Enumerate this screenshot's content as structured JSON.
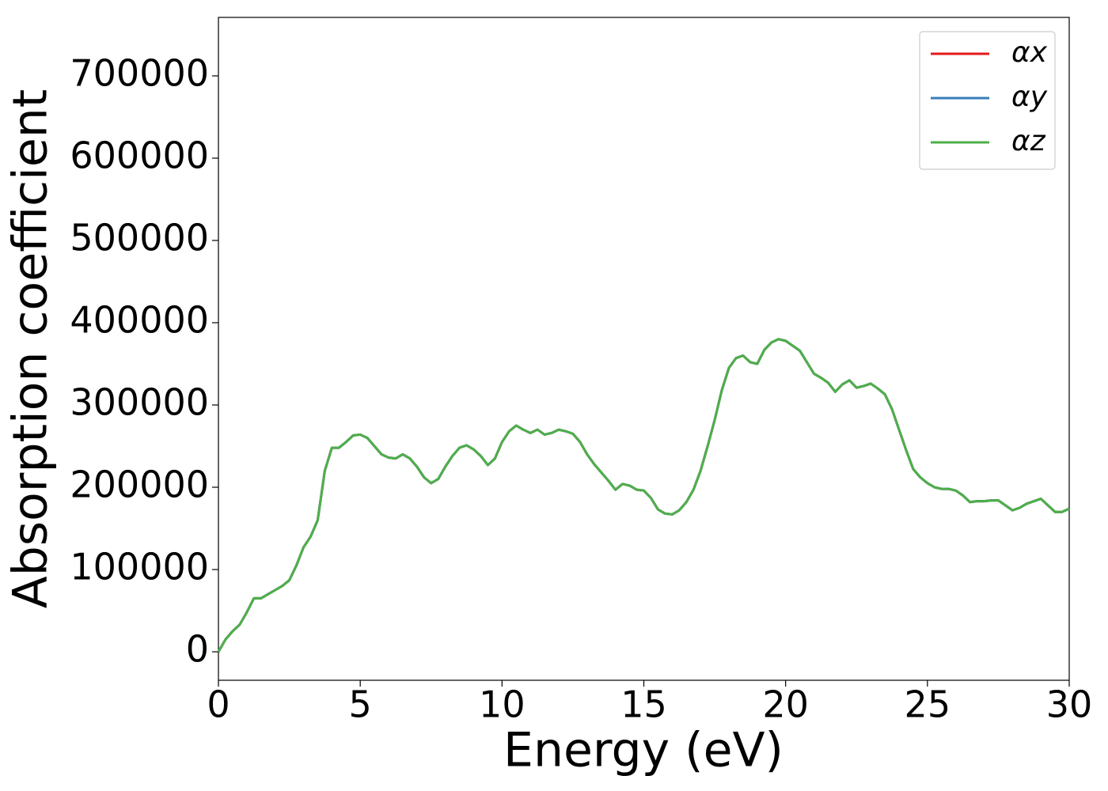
{
  "chart_data": {
    "type": "line",
    "xlabel": "Energy (eV)",
    "ylabel": "Absorption coefficient",
    "x": [
      0,
      0.25,
      0.5,
      0.75,
      1,
      1.25,
      1.5,
      1.75,
      2,
      2.25,
      2.5,
      2.75,
      3,
      3.25,
      3.5,
      3.75,
      4,
      4.25,
      4.5,
      4.75,
      5,
      5.25,
      5.5,
      5.75,
      6,
      6.25,
      6.5,
      6.75,
      7,
      7.25,
      7.5,
      7.75,
      8,
      8.25,
      8.5,
      8.75,
      9,
      9.25,
      9.5,
      9.75,
      10,
      10.25,
      10.5,
      10.75,
      11,
      11.25,
      11.5,
      11.75,
      12,
      12.25,
      12.5,
      12.75,
      13,
      13.25,
      13.5,
      13.75,
      14,
      14.25,
      14.5,
      14.75,
      15,
      15.25,
      15.5,
      15.75,
      16,
      16.25,
      16.5,
      16.75,
      17,
      17.25,
      17.5,
      17.75,
      18,
      18.25,
      18.5,
      18.75,
      19,
      19.25,
      19.5,
      19.75,
      20,
      20.25,
      20.5,
      20.75,
      21,
      21.25,
      21.5,
      21.75,
      22,
      22.25,
      22.5,
      22.75,
      23,
      23.25,
      23.5,
      23.75,
      24,
      24.25,
      24.5,
      24.75,
      25,
      25.25,
      25.5,
      25.75,
      26,
      26.25,
      26.5,
      26.75,
      27,
      27.25,
      27.5,
      27.75,
      28,
      28.25,
      28.5,
      28.75,
      29,
      29.25,
      29.5,
      29.75,
      30
    ],
    "series": [
      {
        "name": "αx",
        "color": "#e41a1c",
        "values": [
          0,
          15000,
          25000,
          33000,
          48000,
          65000,
          65000,
          70000,
          75000,
          80000,
          87000,
          105000,
          127000,
          140000,
          160000,
          220000,
          248000,
          248000,
          255000,
          263000,
          264000,
          260000,
          250000,
          240000,
          236000,
          235000,
          240000,
          235000,
          225000,
          212000,
          205000,
          210000,
          225000,
          238000,
          248000,
          251000,
          246000,
          238000,
          227000,
          235000,
          255000,
          268000,
          275000,
          270000,
          266000,
          270000,
          264000,
          266000,
          270000,
          268000,
          265000,
          255000,
          240000,
          228000,
          218000,
          208000,
          197000,
          204000,
          202000,
          197000,
          196000,
          187000,
          173000,
          168000,
          167000,
          172000,
          182000,
          197000,
          220000,
          250000,
          282000,
          318000,
          345000,
          357000,
          360000,
          352000,
          350000,
          367000,
          376000,
          380000,
          378000,
          372000,
          366000,
          352000,
          338000,
          333000,
          327000,
          316000,
          325000,
          330000,
          321000,
          323000,
          326000,
          320000,
          313000,
          295000,
          270000,
          245000,
          222000,
          212000,
          205000,
          200000,
          198000,
          198000,
          196000,
          190000,
          182000,
          183000,
          183000,
          184000,
          184000,
          178000,
          172000,
          175000,
          180000,
          183000,
          186000,
          178000,
          170000,
          170000,
          174000
        ]
      },
      {
        "name": "αy",
        "color": "#377eb8",
        "values": [
          0,
          15000,
          25000,
          33000,
          48000,
          65000,
          65000,
          70000,
          75000,
          80000,
          87000,
          105000,
          127000,
          140000,
          160000,
          220000,
          248000,
          248000,
          255000,
          263000,
          264000,
          260000,
          250000,
          240000,
          236000,
          235000,
          240000,
          235000,
          225000,
          212000,
          205000,
          210000,
          225000,
          238000,
          248000,
          251000,
          246000,
          238000,
          227000,
          235000,
          255000,
          268000,
          275000,
          270000,
          266000,
          270000,
          264000,
          266000,
          270000,
          268000,
          265000,
          255000,
          240000,
          228000,
          218000,
          208000,
          197000,
          204000,
          202000,
          197000,
          196000,
          187000,
          173000,
          168000,
          167000,
          172000,
          182000,
          197000,
          220000,
          250000,
          282000,
          318000,
          345000,
          357000,
          360000,
          352000,
          350000,
          367000,
          376000,
          380000,
          378000,
          372000,
          366000,
          352000,
          338000,
          333000,
          327000,
          316000,
          325000,
          330000,
          321000,
          323000,
          326000,
          320000,
          313000,
          295000,
          270000,
          245000,
          222000,
          212000,
          205000,
          200000,
          198000,
          198000,
          196000,
          190000,
          182000,
          183000,
          183000,
          184000,
          184000,
          178000,
          172000,
          175000,
          180000,
          183000,
          186000,
          178000,
          170000,
          170000,
          174000
        ]
      },
      {
        "name": "αz",
        "color": "#4daf4a",
        "values": [
          0,
          15000,
          25000,
          33000,
          48000,
          65000,
          65000,
          70000,
          75000,
          80000,
          87000,
          105000,
          127000,
          140000,
          160000,
          220000,
          248000,
          248000,
          255000,
          263000,
          264000,
          260000,
          250000,
          240000,
          236000,
          235000,
          240000,
          235000,
          225000,
          212000,
          205000,
          210000,
          225000,
          238000,
          248000,
          251000,
          246000,
          238000,
          227000,
          235000,
          255000,
          268000,
          275000,
          270000,
          266000,
          270000,
          264000,
          266000,
          270000,
          268000,
          265000,
          255000,
          240000,
          228000,
          218000,
          208000,
          197000,
          204000,
          202000,
          197000,
          196000,
          187000,
          173000,
          168000,
          167000,
          172000,
          182000,
          197000,
          220000,
          250000,
          282000,
          318000,
          345000,
          357000,
          360000,
          352000,
          350000,
          367000,
          376000,
          380000,
          378000,
          372000,
          366000,
          352000,
          338000,
          333000,
          327000,
          316000,
          325000,
          330000,
          321000,
          323000,
          326000,
          320000,
          313000,
          295000,
          270000,
          245000,
          222000,
          212000,
          205000,
          200000,
          198000,
          198000,
          196000,
          190000,
          182000,
          183000,
          183000,
          184000,
          184000,
          178000,
          172000,
          175000,
          180000,
          183000,
          186000,
          178000,
          170000,
          170000,
          174000
        ]
      }
    ],
    "xlim": [
      0,
      30
    ],
    "xticks": [
      0,
      5,
      10,
      15,
      20,
      25,
      30
    ],
    "ylim": [
      -34600,
      771100
    ],
    "yticks": [
      0,
      100000,
      200000,
      300000,
      400000,
      500000,
      600000,
      700000
    ],
    "legend": "upper right"
  }
}
